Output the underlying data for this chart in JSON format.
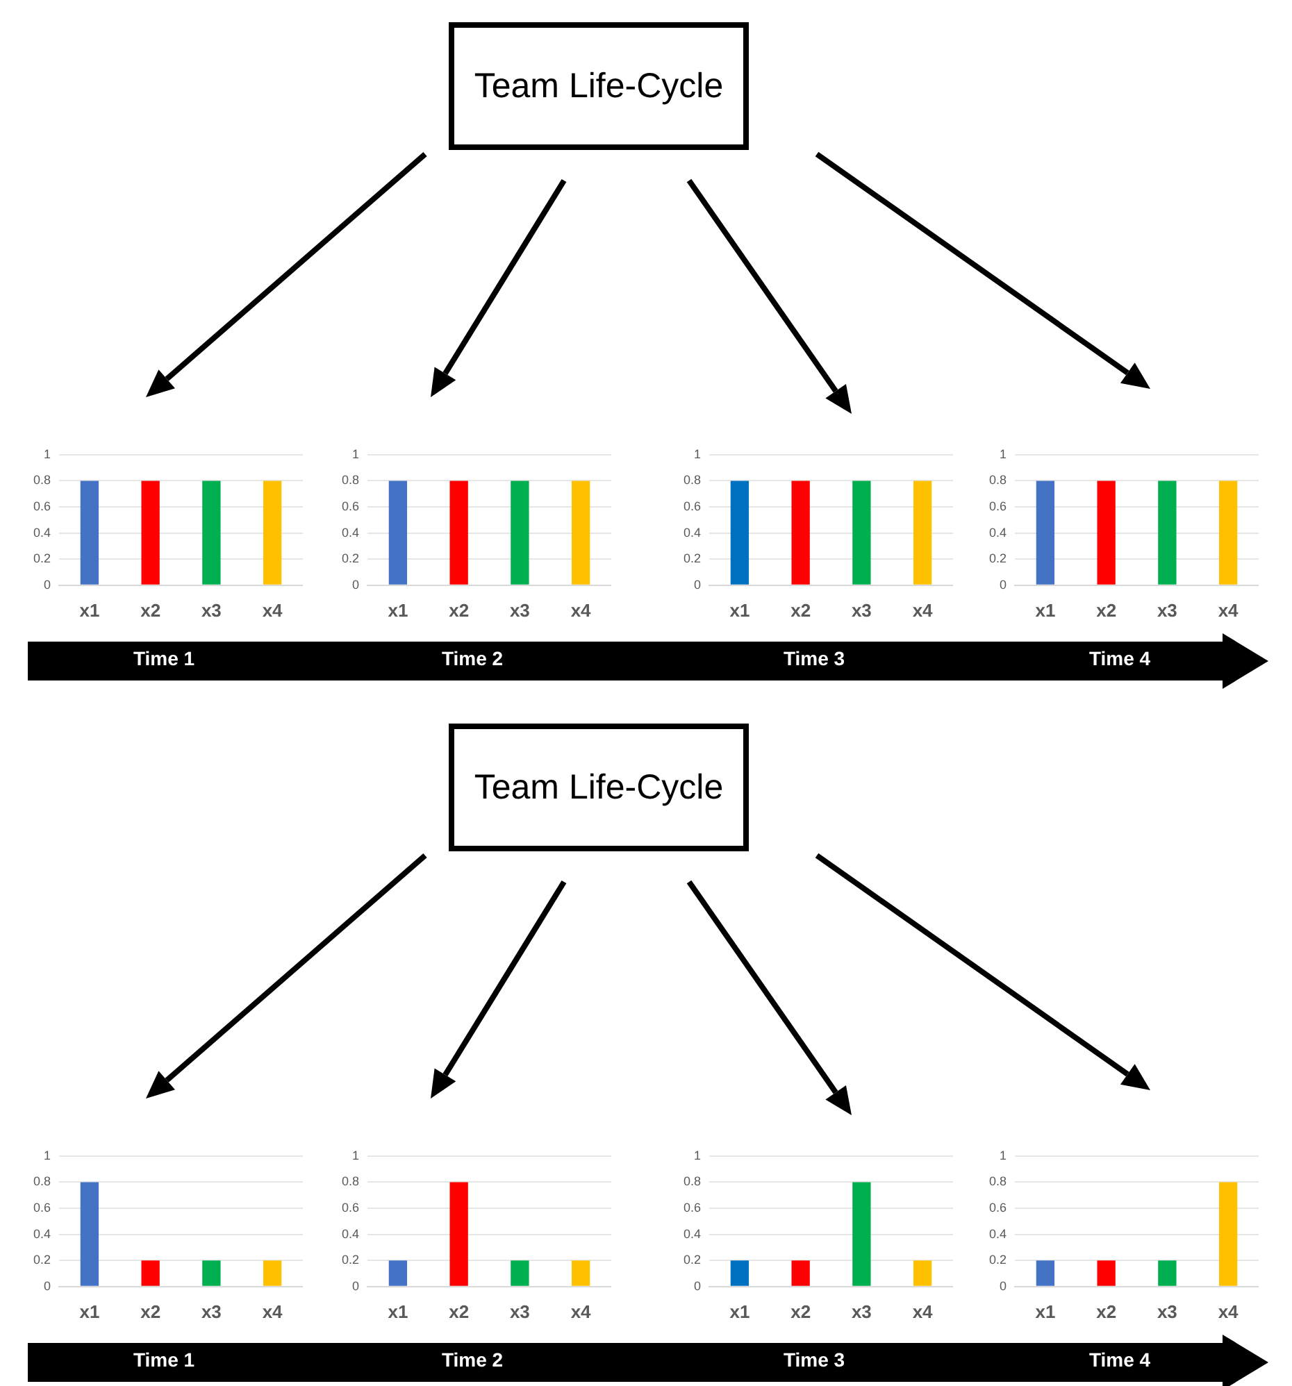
{
  "chart_data": [
    {
      "type": "other",
      "title": "Team Life-Cycle"
    },
    {
      "type": "bar",
      "xlabel": "Time 1",
      "categories": [
        "x1",
        "x2",
        "x3",
        "x4"
      ],
      "values": [
        0.8,
        0.8,
        0.8,
        0.8
      ],
      "colors": [
        "#4472c4",
        "#ff0000",
        "#00b050",
        "#ffc000"
      ],
      "ylim": [
        0,
        1
      ],
      "yticks": [
        0,
        0.2,
        0.4,
        0.6,
        0.8,
        1
      ],
      "grid": "y",
      "legend": false
    },
    {
      "type": "bar",
      "xlabel": "Time 2",
      "categories": [
        "x1",
        "x2",
        "x3",
        "x4"
      ],
      "values": [
        0.8,
        0.8,
        0.8,
        0.8
      ],
      "colors": [
        "#4472c4",
        "#ff0000",
        "#00b050",
        "#ffc000"
      ],
      "ylim": [
        0,
        1
      ],
      "yticks": [
        0,
        0.2,
        0.4,
        0.6,
        0.8,
        1
      ],
      "grid": "y",
      "legend": false
    },
    {
      "type": "bar",
      "xlabel": "Time 3",
      "categories": [
        "x1",
        "x2",
        "x3",
        "x4"
      ],
      "values": [
        0.8,
        0.8,
        0.8,
        0.8
      ],
      "colors": [
        "#0070c0",
        "#ff0000",
        "#00b050",
        "#ffc000"
      ],
      "ylim": [
        0,
        1
      ],
      "yticks": [
        0,
        0.2,
        0.4,
        0.6,
        0.8,
        1
      ],
      "grid": "y",
      "legend": false
    },
    {
      "type": "bar",
      "xlabel": "Time 4",
      "categories": [
        "x1",
        "x2",
        "x3",
        "x4"
      ],
      "values": [
        0.8,
        0.8,
        0.8,
        0.8
      ],
      "colors": [
        "#4472c4",
        "#ff0000",
        "#00b050",
        "#ffc000"
      ],
      "ylim": [
        0,
        1
      ],
      "yticks": [
        0,
        0.2,
        0.4,
        0.6,
        0.8,
        1
      ],
      "grid": "y",
      "legend": false
    },
    {
      "type": "other",
      "title": "Team Life-Cycle"
    },
    {
      "type": "bar",
      "xlabel": "Time 1",
      "categories": [
        "x1",
        "x2",
        "x3",
        "x4"
      ],
      "values": [
        0.8,
        0.2,
        0.2,
        0.2
      ],
      "colors": [
        "#4472c4",
        "#ff0000",
        "#00b050",
        "#ffc000"
      ],
      "ylim": [
        0,
        1
      ],
      "yticks": [
        0,
        0.2,
        0.4,
        0.6,
        0.8,
        1
      ],
      "grid": "y",
      "legend": false
    },
    {
      "type": "bar",
      "xlabel": "Time 2",
      "categories": [
        "x1",
        "x2",
        "x3",
        "x4"
      ],
      "values": [
        0.2,
        0.8,
        0.2,
        0.2
      ],
      "colors": [
        "#4472c4",
        "#ff0000",
        "#00b050",
        "#ffc000"
      ],
      "ylim": [
        0,
        1
      ],
      "yticks": [
        0,
        0.2,
        0.4,
        0.6,
        0.8,
        1
      ],
      "grid": "y",
      "legend": false
    },
    {
      "type": "bar",
      "xlabel": "Time 3",
      "categories": [
        "x1",
        "x2",
        "x3",
        "x4"
      ],
      "values": [
        0.2,
        0.2,
        0.8,
        0.2
      ],
      "colors": [
        "#0070c0",
        "#ff0000",
        "#00b050",
        "#ffc000"
      ],
      "ylim": [
        0,
        1
      ],
      "yticks": [
        0,
        0.2,
        0.4,
        0.6,
        0.8,
        1
      ],
      "grid": "y",
      "legend": false
    },
    {
      "type": "bar",
      "xlabel": "Time 4",
      "categories": [
        "x1",
        "x2",
        "x3",
        "x4"
      ],
      "values": [
        0.2,
        0.2,
        0.2,
        0.8
      ],
      "colors": [
        "#4472c4",
        "#ff0000",
        "#00b050",
        "#ffc000"
      ],
      "ylim": [
        0,
        1
      ],
      "yticks": [
        0,
        0.2,
        0.4,
        0.6,
        0.8,
        1
      ],
      "grid": "y",
      "legend": false
    }
  ]
}
